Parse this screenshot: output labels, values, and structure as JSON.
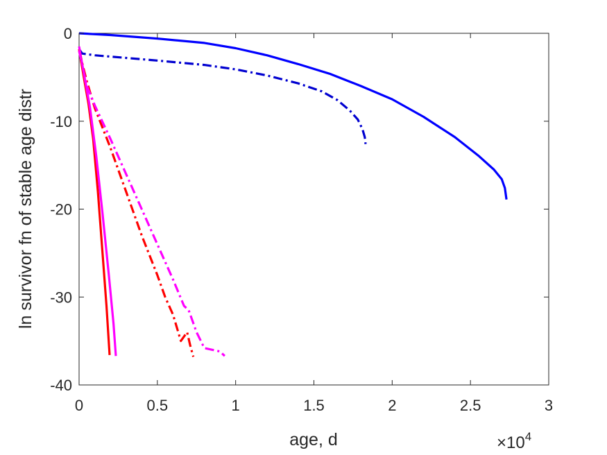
{
  "chart_data": {
    "type": "line",
    "title": "",
    "xlabel": "age, d",
    "ylabel": "ln survivor fn of stable age distr",
    "x_exponent_label": {
      "base": "×10",
      "power": "4"
    },
    "xlim": [
      0,
      30000
    ],
    "ylim": [
      -40,
      0
    ],
    "xticks": [
      0,
      5000,
      10000,
      15000,
      20000,
      25000,
      30000
    ],
    "xtick_labels": [
      "0",
      "0.5",
      "1",
      "1.5",
      "2",
      "2.5",
      "3"
    ],
    "yticks": [
      0,
      -10,
      -20,
      -30,
      -40
    ],
    "ytick_labels": [
      "0",
      "-10",
      "-20",
      "-30",
      "-40"
    ],
    "grid": false,
    "legend": "none",
    "series": [
      {
        "color": "#0000ff",
        "style": "solid",
        "points": [
          [
            0,
            0
          ],
          [
            2000,
            -0.2
          ],
          [
            5000,
            -0.6
          ],
          [
            8000,
            -1.1
          ],
          [
            10000,
            -1.7
          ],
          [
            12000,
            -2.5
          ],
          [
            14000,
            -3.5
          ],
          [
            16000,
            -4.6
          ],
          [
            18000,
            -6.0
          ],
          [
            20000,
            -7.5
          ],
          [
            22000,
            -9.5
          ],
          [
            24000,
            -11.8
          ],
          [
            25500,
            -13.9
          ],
          [
            26500,
            -15.5
          ],
          [
            27000,
            -16.6
          ],
          [
            27200,
            -17.6
          ],
          [
            27300,
            -18.9
          ]
        ]
      },
      {
        "color": "#0000d0",
        "style": "dashdot",
        "points": [
          [
            0,
            -1.8
          ],
          [
            200,
            -2.3
          ],
          [
            1000,
            -2.5
          ],
          [
            3000,
            -2.8
          ],
          [
            5000,
            -3.1
          ],
          [
            8000,
            -3.6
          ],
          [
            10000,
            -4.1
          ],
          [
            12000,
            -4.8
          ],
          [
            14000,
            -5.7
          ],
          [
            15500,
            -6.6
          ],
          [
            16500,
            -7.6
          ],
          [
            17300,
            -8.8
          ],
          [
            17800,
            -9.8
          ],
          [
            18100,
            -10.9
          ],
          [
            18250,
            -11.8
          ],
          [
            18300,
            -12.6
          ]
        ]
      },
      {
        "color": "#ff0000",
        "style": "solid",
        "points": [
          [
            0,
            -1.8
          ],
          [
            300,
            -5.0
          ],
          [
            600,
            -8.0
          ],
          [
            900,
            -12.0
          ],
          [
            1200,
            -18.0
          ],
          [
            1500,
            -25.0
          ],
          [
            1750,
            -31.0
          ],
          [
            1950,
            -36.6
          ]
        ]
      },
      {
        "color": "#ff00ff",
        "style": "solid",
        "points": [
          [
            0,
            -1.5
          ],
          [
            300,
            -4.5
          ],
          [
            700,
            -8.5
          ],
          [
            1100,
            -14.0
          ],
          [
            1500,
            -20.5
          ],
          [
            1900,
            -27.5
          ],
          [
            2200,
            -33.0
          ],
          [
            2350,
            -36.7
          ]
        ]
      },
      {
        "color": "#ff0000",
        "style": "dashdot",
        "points": [
          [
            0,
            -2.0
          ],
          [
            500,
            -5.5
          ],
          [
            1000,
            -8.5
          ],
          [
            2000,
            -13.0
          ],
          [
            3000,
            -18.0
          ],
          [
            4000,
            -23.0
          ],
          [
            5000,
            -27.5
          ],
          [
            5500,
            -30.0
          ],
          [
            6000,
            -32.0
          ],
          [
            6500,
            -35.0
          ],
          [
            6900,
            -34.0
          ],
          [
            7100,
            -35.5
          ],
          [
            7300,
            -36.8
          ]
        ]
      },
      {
        "color": "#ff00ff",
        "style": "dashdot",
        "points": [
          [
            0,
            -2.0
          ],
          [
            500,
            -6.0
          ],
          [
            1000,
            -8.2
          ],
          [
            2000,
            -12.0
          ],
          [
            3000,
            -16.0
          ],
          [
            4000,
            -20.0
          ],
          [
            5000,
            -24.0
          ],
          [
            6000,
            -28.0
          ],
          [
            6700,
            -31.0
          ],
          [
            7000,
            -31.5
          ],
          [
            7500,
            -34.0
          ],
          [
            8000,
            -35.8
          ],
          [
            8500,
            -36.0
          ],
          [
            9000,
            -36.2
          ],
          [
            9300,
            -36.7
          ]
        ]
      }
    ]
  }
}
